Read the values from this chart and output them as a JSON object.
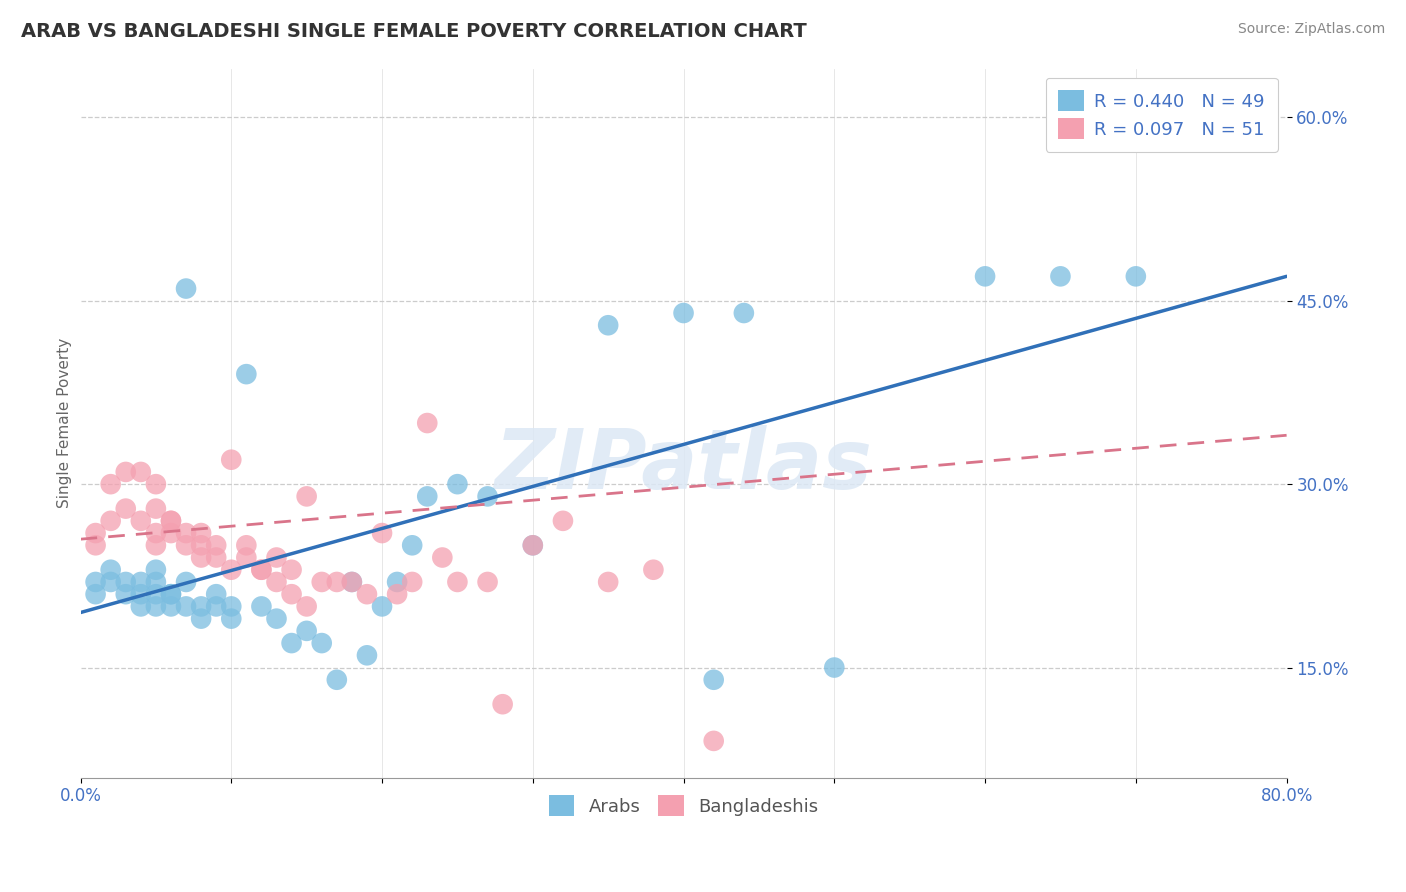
{
  "title": "ARAB VS BANGLADESHI SINGLE FEMALE POVERTY CORRELATION CHART",
  "source": "Source: ZipAtlas.com",
  "ylabel": "Single Female Poverty",
  "xlim": [
    0.0,
    0.8
  ],
  "ylim": [
    0.06,
    0.64
  ],
  "ytick_positions": [
    0.15,
    0.3,
    0.45,
    0.6
  ],
  "ytick_labels": [
    "15.0%",
    "30.0%",
    "45.0%",
    "60.0%"
  ],
  "arab_R": 0.44,
  "arab_N": 49,
  "bangla_R": 0.097,
  "bangla_N": 51,
  "arab_color": "#7bbde0",
  "bangla_color": "#f4a0b0",
  "trend_arab_color": "#3070b8",
  "trend_bangla_color": "#d9748a",
  "legend_label_arab": "Arabs",
  "legend_label_bangla": "Bangladeshis",
  "watermark": "ZIPatlas",
  "arab_x": [
    0.01,
    0.01,
    0.02,
    0.02,
    0.03,
    0.03,
    0.04,
    0.04,
    0.04,
    0.05,
    0.05,
    0.05,
    0.05,
    0.06,
    0.06,
    0.06,
    0.07,
    0.07,
    0.07,
    0.08,
    0.08,
    0.09,
    0.09,
    0.1,
    0.1,
    0.11,
    0.12,
    0.13,
    0.14,
    0.15,
    0.16,
    0.17,
    0.18,
    0.19,
    0.2,
    0.21,
    0.22,
    0.23,
    0.25,
    0.27,
    0.3,
    0.35,
    0.4,
    0.42,
    0.44,
    0.5,
    0.6,
    0.65,
    0.7
  ],
  "arab_y": [
    0.22,
    0.21,
    0.23,
    0.22,
    0.21,
    0.22,
    0.2,
    0.21,
    0.22,
    0.21,
    0.2,
    0.22,
    0.23,
    0.2,
    0.21,
    0.21,
    0.22,
    0.2,
    0.46,
    0.19,
    0.2,
    0.2,
    0.21,
    0.2,
    0.19,
    0.39,
    0.2,
    0.19,
    0.17,
    0.18,
    0.17,
    0.14,
    0.22,
    0.16,
    0.2,
    0.22,
    0.25,
    0.29,
    0.3,
    0.29,
    0.25,
    0.43,
    0.44,
    0.14,
    0.44,
    0.15,
    0.47,
    0.47,
    0.47
  ],
  "bangla_x": [
    0.01,
    0.01,
    0.02,
    0.02,
    0.03,
    0.03,
    0.04,
    0.04,
    0.05,
    0.05,
    0.05,
    0.05,
    0.06,
    0.06,
    0.06,
    0.07,
    0.07,
    0.08,
    0.08,
    0.08,
    0.09,
    0.09,
    0.1,
    0.1,
    0.11,
    0.11,
    0.12,
    0.12,
    0.13,
    0.13,
    0.14,
    0.14,
    0.15,
    0.15,
    0.16,
    0.17,
    0.18,
    0.19,
    0.2,
    0.21,
    0.22,
    0.23,
    0.24,
    0.25,
    0.27,
    0.28,
    0.3,
    0.32,
    0.35,
    0.38,
    0.42
  ],
  "bangla_y": [
    0.25,
    0.26,
    0.27,
    0.3,
    0.28,
    0.31,
    0.31,
    0.27,
    0.3,
    0.28,
    0.26,
    0.25,
    0.27,
    0.26,
    0.27,
    0.26,
    0.25,
    0.25,
    0.26,
    0.24,
    0.25,
    0.24,
    0.32,
    0.23,
    0.25,
    0.24,
    0.23,
    0.23,
    0.24,
    0.22,
    0.23,
    0.21,
    0.29,
    0.2,
    0.22,
    0.22,
    0.22,
    0.21,
    0.26,
    0.21,
    0.22,
    0.35,
    0.24,
    0.22,
    0.22,
    0.12,
    0.25,
    0.27,
    0.22,
    0.23,
    0.09
  ],
  "arab_trend_x0": 0.0,
  "arab_trend_y0": 0.195,
  "arab_trend_x1": 0.8,
  "arab_trend_y1": 0.47,
  "bangla_trend_x0": 0.0,
  "bangla_trend_y0": 0.255,
  "bangla_trend_x1": 0.8,
  "bangla_trend_y1": 0.34,
  "title_fontsize": 14,
  "axis_label_fontsize": 11,
  "tick_fontsize": 12,
  "source_fontsize": 10,
  "legend_fontsize": 13
}
